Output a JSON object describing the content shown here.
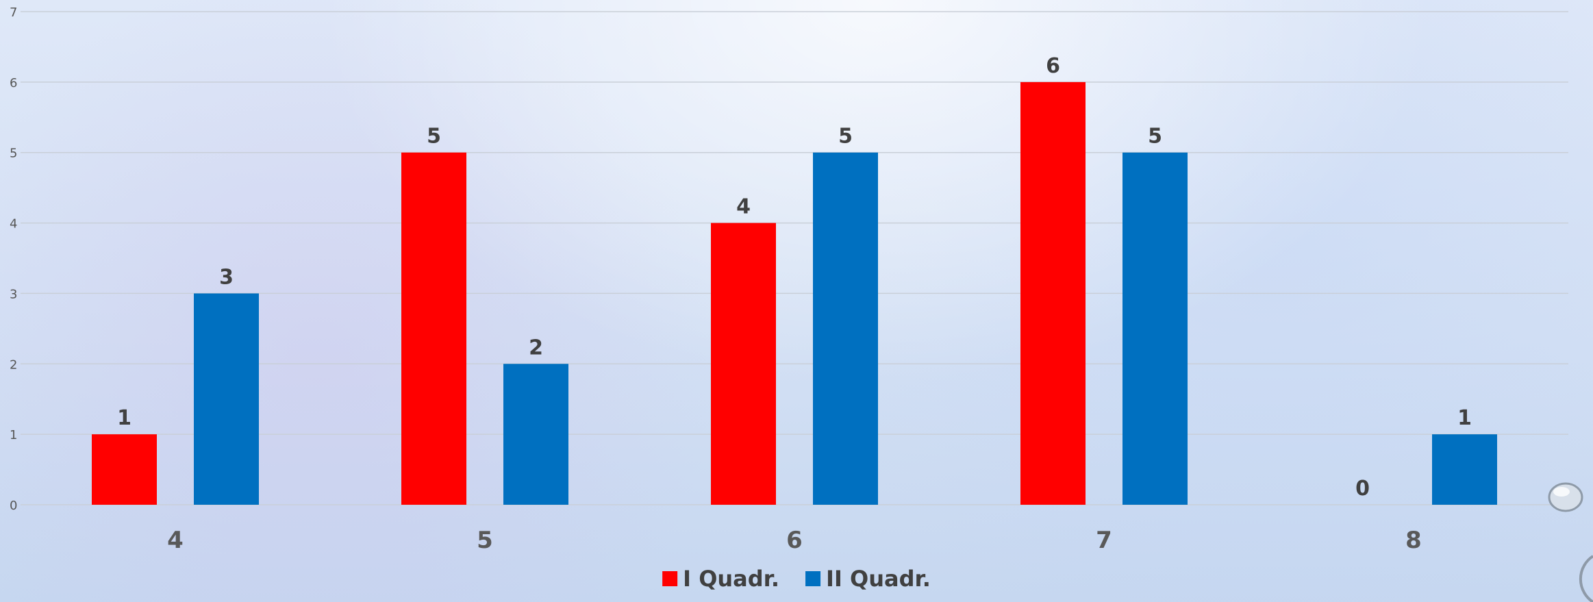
{
  "chart_data": {
    "type": "bar",
    "categories": [
      "4",
      "5",
      "6",
      "7",
      "8"
    ],
    "series": [
      {
        "name": "I Quadr.",
        "color": "#ff0000",
        "values": [
          1,
          5,
          4,
          6,
          0
        ]
      },
      {
        "name": "II Quadr.",
        "color": "#0070c0",
        "values": [
          3,
          2,
          5,
          5,
          1
        ]
      }
    ],
    "ylim": [
      0,
      7
    ],
    "yticks": [
      "0",
      "1",
      "2",
      "3",
      "4",
      "5",
      "6",
      "7"
    ],
    "grid": true,
    "data_labels": true,
    "legend_position": "bottom"
  }
}
